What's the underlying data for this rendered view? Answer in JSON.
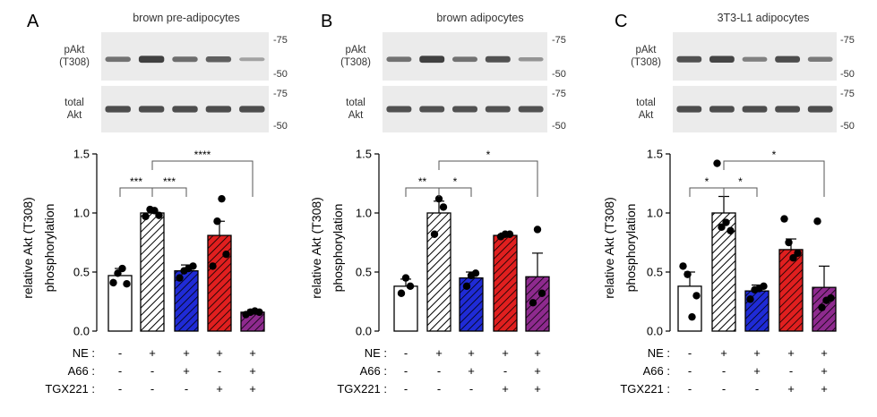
{
  "chart_data": [
    {
      "type": "bar",
      "panel": "A",
      "title": "brown pre-adipocytes",
      "ylabel_line1": "relative Akt (T308)",
      "ylabel_line2": "phosphorylation",
      "ylim": [
        0,
        1.5
      ],
      "yticks": [
        "0.0",
        "0.5",
        "1.0",
        "1.5"
      ],
      "categories": [
        "control",
        "NE",
        "NE+A66",
        "NE+TGX221",
        "NE+A66+TGX221"
      ],
      "values": [
        0.47,
        1.0,
        0.51,
        0.81,
        0.16
      ],
      "errors": [
        0.06,
        0.02,
        0.05,
        0.12,
        0.02
      ],
      "points": [
        [
          0.41,
          0.49,
          0.53,
          0.4
        ],
        [
          0.97,
          1.03,
          1.02,
          0.98
        ],
        [
          0.45,
          0.51,
          0.53,
          0.55
        ],
        [
          0.55,
          0.93,
          1.12,
          0.65
        ],
        [
          0.14,
          0.16,
          0.17,
          0.16
        ]
      ],
      "blot_pakt_label": [
        "pAkt",
        "(T308)"
      ],
      "blot_total_label": [
        "total",
        "Akt"
      ],
      "mw_markers": [
        "-75",
        "-50",
        "-75",
        "-50"
      ],
      "significance": [
        {
          "label": "***",
          "from": 0,
          "to": 1
        },
        {
          "label": "***",
          "from": 1,
          "to": 2
        },
        {
          "label": "****",
          "from": 1,
          "to": 4
        }
      ]
    },
    {
      "type": "bar",
      "panel": "B",
      "title": "brown adipocytes",
      "ylabel_line1": "relative Akt (T308)",
      "ylabel_line2": "phosphorylation",
      "ylim": [
        0,
        1.5
      ],
      "yticks": [
        "0.0",
        "0.5",
        "1.0",
        "1.5"
      ],
      "categories": [
        "control",
        "NE",
        "NE+A66",
        "NE+TGX221",
        "NE+A66+TGX221"
      ],
      "values": [
        0.38,
        1.0,
        0.45,
        0.81,
        0.46
      ],
      "errors": [
        0.06,
        0.1,
        0.05,
        0.02,
        0.2
      ],
      "points": [
        [
          0.32,
          0.45,
          0.38
        ],
        [
          0.82,
          1.12,
          1.05
        ],
        [
          0.38,
          0.47,
          0.49
        ],
        [
          0.8,
          0.82,
          0.82
        ],
        [
          0.24,
          0.86,
          0.32
        ]
      ],
      "blot_pakt_label": [
        "pAkt",
        "(T308)"
      ],
      "blot_total_label": [
        "total",
        "Akt"
      ],
      "mw_markers": [
        "-75",
        "-50",
        "-75",
        "-50"
      ],
      "significance": [
        {
          "label": "**",
          "from": 0,
          "to": 1
        },
        {
          "label": "*",
          "from": 1,
          "to": 2
        },
        {
          "label": "*",
          "from": 1,
          "to": 4
        }
      ]
    },
    {
      "type": "bar",
      "panel": "C",
      "title": "3T3-L1 adipocytes",
      "ylabel_line1": "relative Akt (T308)",
      "ylabel_line2": "phosphorylation",
      "ylim": [
        0,
        1.5
      ],
      "yticks": [
        "0.0",
        "0.5",
        "1.0",
        "1.5"
      ],
      "categories": [
        "control",
        "NE",
        "NE+A66",
        "NE+TGX221",
        "NE+A66+TGX221"
      ],
      "values": [
        0.38,
        1.0,
        0.34,
        0.69,
        0.37
      ],
      "errors": [
        0.12,
        0.14,
        0.05,
        0.09,
        0.18
      ],
      "points": [
        [
          0.55,
          0.48,
          0.12,
          0.3
        ],
        [
          1.42,
          0.88,
          0.92,
          0.85
        ],
        [
          0.27,
          0.35,
          0.36,
          0.38
        ],
        [
          0.95,
          0.75,
          0.62,
          0.66
        ],
        [
          0.93,
          0.2,
          0.26,
          0.28
        ]
      ],
      "blot_pakt_label": [
        "pAkt",
        "(T308)"
      ],
      "blot_total_label": [
        "total",
        "Akt"
      ],
      "mw_markers": [
        "-75",
        "-50",
        "-75",
        "-50"
      ],
      "significance": [
        {
          "label": "*",
          "from": 0,
          "to": 1
        },
        {
          "label": "*",
          "from": 1,
          "to": 2
        },
        {
          "label": "*",
          "from": 1,
          "to": 4
        }
      ]
    }
  ],
  "treatment_rows": [
    {
      "label": "NE :",
      "values": [
        "-",
        "+",
        "+",
        "+",
        "+"
      ]
    },
    {
      "label": "A66 :",
      "values": [
        "-",
        "-",
        "+",
        "-",
        "+"
      ]
    },
    {
      "label": "TGX221 :",
      "values": [
        "-",
        "-",
        "-",
        "+",
        "+"
      ]
    }
  ],
  "colors": {
    "control": "#ffffff",
    "ne_hatch": "#ffffff",
    "a66": "#1f2bd6",
    "tgx": "#e01f1f",
    "combo": "#8e2a8e",
    "ink": "#000000",
    "blot_bg": "#e9e9e9",
    "band": "#3a3a3a"
  }
}
